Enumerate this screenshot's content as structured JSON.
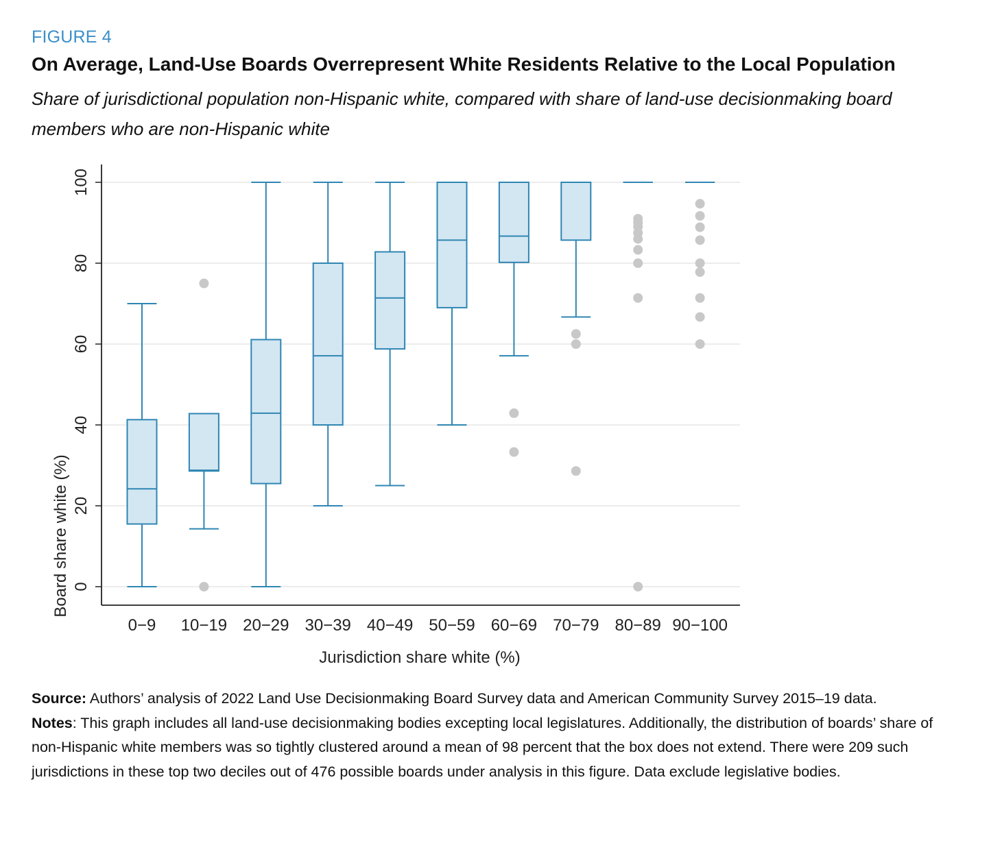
{
  "figure_label": "FIGURE 4",
  "title": "On Average, Land-Use Boards Overrepresent White Residents Relative to the Local Population",
  "subtitle": "Share of jurisdictional population non-Hispanic white, compared with share of land-use decisionmaking board members who are non-Hispanic white",
  "colors": {
    "accent": "#3b8fc9",
    "box_fill": "#d3e7f2",
    "box_stroke": "#2f86b3",
    "outlier": "#c8c8c8",
    "grid": "#e6e6e6"
  },
  "chart_data": {
    "type": "box",
    "xlabel": "Jurisdiction share white (%)",
    "ylabel": "Board share white (%)",
    "ylim": [
      0,
      100
    ],
    "yticks": [
      0,
      20,
      40,
      60,
      80,
      100
    ],
    "grid": true,
    "categories": [
      "0−9",
      "10−19",
      "20−29",
      "30−39",
      "40−49",
      "50−59",
      "60−69",
      "70−79",
      "80−89",
      "90−100"
    ],
    "boxes": [
      {
        "category": "0−9",
        "whisker_low": 0,
        "q1": 15.5,
        "median": 24.2,
        "q3": 41.3,
        "whisker_high": 70,
        "outliers": []
      },
      {
        "category": "10−19",
        "whisker_low": 14.3,
        "q1": 28.6,
        "median": 28.8,
        "q3": 42.8,
        "whisker_high": 42.8,
        "outliers": [
          75,
          0
        ]
      },
      {
        "category": "20−29",
        "whisker_low": 0,
        "q1": 25.5,
        "median": 42.9,
        "q3": 61.1,
        "whisker_high": 100,
        "outliers": []
      },
      {
        "category": "30−39",
        "whisker_low": 20,
        "q1": 40,
        "median": 57.1,
        "q3": 80,
        "whisker_high": 100,
        "outliers": []
      },
      {
        "category": "40−49",
        "whisker_low": 25,
        "q1": 58.8,
        "median": 71.4,
        "q3": 82.8,
        "whisker_high": 100,
        "outliers": []
      },
      {
        "category": "50−59",
        "whisker_low": 40,
        "q1": 69,
        "median": 85.7,
        "q3": 100,
        "whisker_high": 100,
        "outliers": []
      },
      {
        "category": "60−69",
        "whisker_low": 57.1,
        "q1": 80.2,
        "median": 86.7,
        "q3": 100,
        "whisker_high": 100,
        "outliers": [
          42.9,
          33.3
        ]
      },
      {
        "category": "70−79",
        "whisker_low": 66.7,
        "q1": 85.7,
        "median": 100,
        "q3": 100,
        "whisker_high": 100,
        "outliers": [
          62.5,
          60,
          28.6
        ]
      },
      {
        "category": "80−89",
        "whisker_low": 100,
        "q1": 100,
        "median": 100,
        "q3": 100,
        "whisker_high": 100,
        "outliers": [
          91,
          90,
          89,
          87.5,
          86,
          83.3,
          80,
          71.4,
          0
        ]
      },
      {
        "category": "90−100",
        "whisker_low": 100,
        "q1": 100,
        "median": 100,
        "q3": 100,
        "whisker_high": 100,
        "outliers": [
          94.7,
          91.7,
          88.9,
          85.7,
          80,
          77.8,
          71.4,
          66.7,
          60
        ]
      }
    ]
  },
  "footer": {
    "source_label": "Source:",
    "source_text": " Authors’ analysis of 2022 Land Use Decisionmaking Board Survey data and American Community Survey 2015–19 data.",
    "notes_label": "Notes",
    "notes_text": ": This graph includes all land-use decisionmaking bodies excepting local legislatures. Additionally, the distribution of boards’ share of non-Hispanic white members was so tightly clustered around a mean of 98 percent that the box does not extend. There were 209 such jurisdictions in these top two deciles out of 476 possible boards under analysis in this figure. Data exclude legislative bodies."
  }
}
